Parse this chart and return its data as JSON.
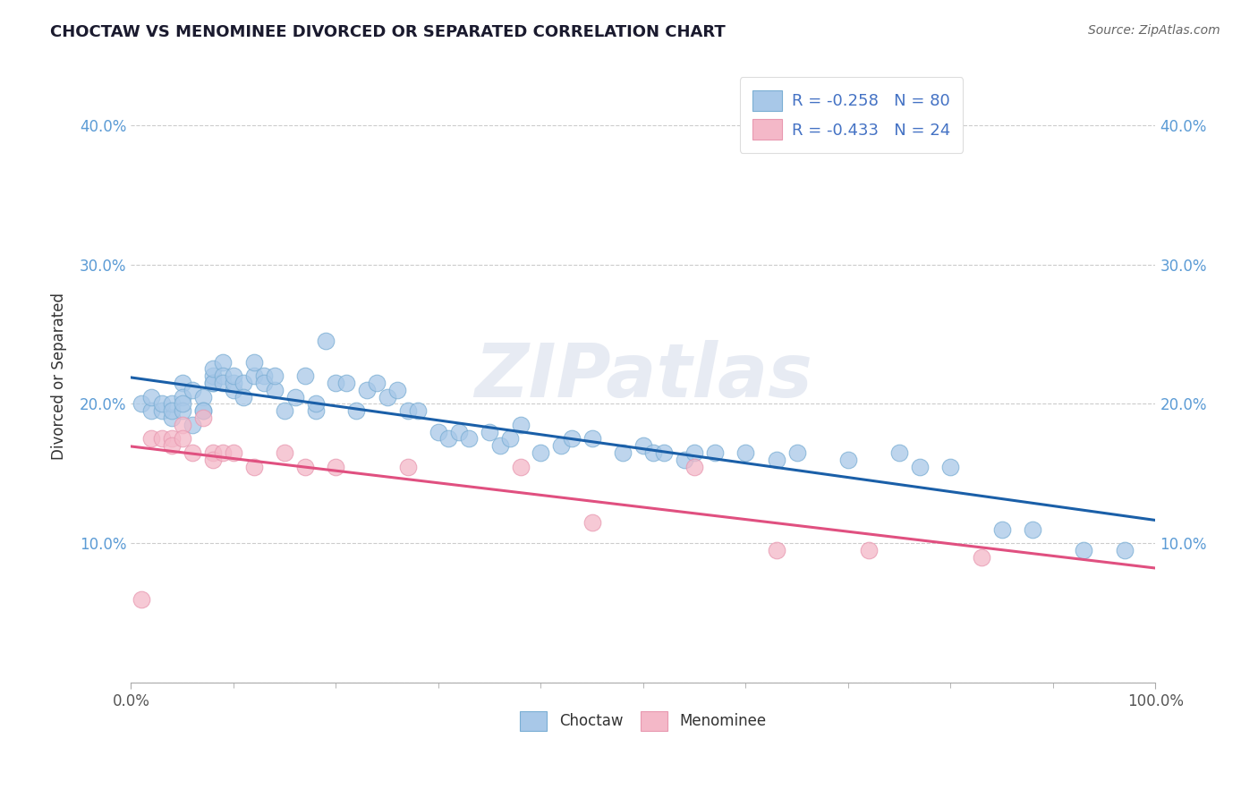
{
  "title": "CHOCTAW VS MENOMINEE DIVORCED OR SEPARATED CORRELATION CHART",
  "source_text": "Source: ZipAtlas.com",
  "ylabel": "Divorced or Separated",
  "xlim": [
    0.0,
    1.0
  ],
  "ylim": [
    0.0,
    0.44
  ],
  "xtick_positions": [
    0.0,
    1.0
  ],
  "xtick_labels": [
    "0.0%",
    "100.0%"
  ],
  "yticks": [
    0.0,
    0.1,
    0.2,
    0.3,
    0.4
  ],
  "ytick_labels": [
    "",
    "10.0%",
    "20.0%",
    "30.0%",
    "40.0%"
  ],
  "legend_text1": "R = -0.258   N = 80",
  "legend_text2": "R = -0.433   N = 24",
  "legend_label1": "Choctaw",
  "legend_label2": "Menominee",
  "watermark": "ZIPatlas",
  "blue_scatter_color": "#a8c8e8",
  "pink_scatter_color": "#f4b8c8",
  "blue_scatter_edge": "#7aaed4",
  "pink_scatter_edge": "#e898b0",
  "blue_line_color": "#1a5fa8",
  "pink_line_color": "#e05080",
  "legend_text_color": "#4472c4",
  "choctaw_x": [
    0.01,
    0.02,
    0.02,
    0.03,
    0.03,
    0.04,
    0.04,
    0.04,
    0.05,
    0.05,
    0.05,
    0.05,
    0.06,
    0.06,
    0.07,
    0.07,
    0.07,
    0.08,
    0.08,
    0.08,
    0.08,
    0.09,
    0.09,
    0.09,
    0.1,
    0.1,
    0.1,
    0.11,
    0.11,
    0.12,
    0.12,
    0.13,
    0.13,
    0.14,
    0.14,
    0.15,
    0.16,
    0.17,
    0.18,
    0.18,
    0.19,
    0.2,
    0.21,
    0.22,
    0.23,
    0.24,
    0.25,
    0.26,
    0.27,
    0.28,
    0.3,
    0.31,
    0.32,
    0.33,
    0.35,
    0.36,
    0.37,
    0.38,
    0.4,
    0.42,
    0.43,
    0.45,
    0.48,
    0.5,
    0.51,
    0.52,
    0.54,
    0.55,
    0.57,
    0.6,
    0.63,
    0.65,
    0.7,
    0.75,
    0.77,
    0.8,
    0.85,
    0.88,
    0.93,
    0.97
  ],
  "choctaw_y": [
    0.2,
    0.195,
    0.205,
    0.195,
    0.2,
    0.19,
    0.2,
    0.195,
    0.215,
    0.205,
    0.195,
    0.2,
    0.185,
    0.21,
    0.205,
    0.195,
    0.195,
    0.215,
    0.22,
    0.215,
    0.225,
    0.23,
    0.22,
    0.215,
    0.21,
    0.215,
    0.22,
    0.215,
    0.205,
    0.22,
    0.23,
    0.22,
    0.215,
    0.21,
    0.22,
    0.195,
    0.205,
    0.22,
    0.195,
    0.2,
    0.245,
    0.215,
    0.215,
    0.195,
    0.21,
    0.215,
    0.205,
    0.21,
    0.195,
    0.195,
    0.18,
    0.175,
    0.18,
    0.175,
    0.18,
    0.17,
    0.175,
    0.185,
    0.165,
    0.17,
    0.175,
    0.175,
    0.165,
    0.17,
    0.165,
    0.165,
    0.16,
    0.165,
    0.165,
    0.165,
    0.16,
    0.165,
    0.16,
    0.165,
    0.155,
    0.155,
    0.11,
    0.11,
    0.095,
    0.095
  ],
  "menominee_x": [
    0.01,
    0.02,
    0.03,
    0.04,
    0.04,
    0.05,
    0.05,
    0.06,
    0.07,
    0.08,
    0.08,
    0.09,
    0.1,
    0.12,
    0.15,
    0.17,
    0.2,
    0.27,
    0.38,
    0.45,
    0.55,
    0.63,
    0.72,
    0.83
  ],
  "menominee_y": [
    0.06,
    0.175,
    0.175,
    0.175,
    0.17,
    0.185,
    0.175,
    0.165,
    0.19,
    0.165,
    0.16,
    0.165,
    0.165,
    0.155,
    0.165,
    0.155,
    0.155,
    0.155,
    0.155,
    0.115,
    0.155,
    0.095,
    0.095,
    0.09
  ]
}
